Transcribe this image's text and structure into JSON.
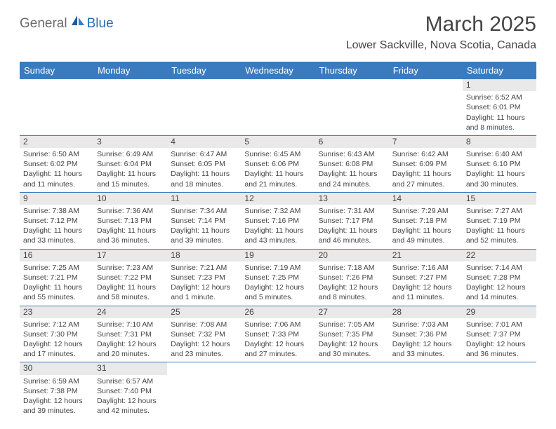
{
  "brand": {
    "part1": "General",
    "part2": "Blue"
  },
  "title": "March 2025",
  "location": "Lower Sackville, Nova Scotia, Canada",
  "colors": {
    "header_bg": "#3a7bbf",
    "header_text": "#ffffff",
    "daynum_bg": "#e9e9e9",
    "text": "#444444",
    "brand_gray": "#6b6b6b",
    "brand_blue": "#2a6db0"
  },
  "weekdays": [
    "Sunday",
    "Monday",
    "Tuesday",
    "Wednesday",
    "Thursday",
    "Friday",
    "Saturday"
  ],
  "weeks": [
    [
      null,
      null,
      null,
      null,
      null,
      null,
      {
        "n": "1",
        "sr": "6:52 AM",
        "ss": "6:01 PM",
        "dl": "11 hours and 8 minutes."
      }
    ],
    [
      {
        "n": "2",
        "sr": "6:50 AM",
        "ss": "6:02 PM",
        "dl": "11 hours and 11 minutes."
      },
      {
        "n": "3",
        "sr": "6:49 AM",
        "ss": "6:04 PM",
        "dl": "11 hours and 15 minutes."
      },
      {
        "n": "4",
        "sr": "6:47 AM",
        "ss": "6:05 PM",
        "dl": "11 hours and 18 minutes."
      },
      {
        "n": "5",
        "sr": "6:45 AM",
        "ss": "6:06 PM",
        "dl": "11 hours and 21 minutes."
      },
      {
        "n": "6",
        "sr": "6:43 AM",
        "ss": "6:08 PM",
        "dl": "11 hours and 24 minutes."
      },
      {
        "n": "7",
        "sr": "6:42 AM",
        "ss": "6:09 PM",
        "dl": "11 hours and 27 minutes."
      },
      {
        "n": "8",
        "sr": "6:40 AM",
        "ss": "6:10 PM",
        "dl": "11 hours and 30 minutes."
      }
    ],
    [
      {
        "n": "9",
        "sr": "7:38 AM",
        "ss": "7:12 PM",
        "dl": "11 hours and 33 minutes."
      },
      {
        "n": "10",
        "sr": "7:36 AM",
        "ss": "7:13 PM",
        "dl": "11 hours and 36 minutes."
      },
      {
        "n": "11",
        "sr": "7:34 AM",
        "ss": "7:14 PM",
        "dl": "11 hours and 39 minutes."
      },
      {
        "n": "12",
        "sr": "7:32 AM",
        "ss": "7:16 PM",
        "dl": "11 hours and 43 minutes."
      },
      {
        "n": "13",
        "sr": "7:31 AM",
        "ss": "7:17 PM",
        "dl": "11 hours and 46 minutes."
      },
      {
        "n": "14",
        "sr": "7:29 AM",
        "ss": "7:18 PM",
        "dl": "11 hours and 49 minutes."
      },
      {
        "n": "15",
        "sr": "7:27 AM",
        "ss": "7:19 PM",
        "dl": "11 hours and 52 minutes."
      }
    ],
    [
      {
        "n": "16",
        "sr": "7:25 AM",
        "ss": "7:21 PM",
        "dl": "11 hours and 55 minutes."
      },
      {
        "n": "17",
        "sr": "7:23 AM",
        "ss": "7:22 PM",
        "dl": "11 hours and 58 minutes."
      },
      {
        "n": "18",
        "sr": "7:21 AM",
        "ss": "7:23 PM",
        "dl": "12 hours and 1 minute."
      },
      {
        "n": "19",
        "sr": "7:19 AM",
        "ss": "7:25 PM",
        "dl": "12 hours and 5 minutes."
      },
      {
        "n": "20",
        "sr": "7:18 AM",
        "ss": "7:26 PM",
        "dl": "12 hours and 8 minutes."
      },
      {
        "n": "21",
        "sr": "7:16 AM",
        "ss": "7:27 PM",
        "dl": "12 hours and 11 minutes."
      },
      {
        "n": "22",
        "sr": "7:14 AM",
        "ss": "7:28 PM",
        "dl": "12 hours and 14 minutes."
      }
    ],
    [
      {
        "n": "23",
        "sr": "7:12 AM",
        "ss": "7:30 PM",
        "dl": "12 hours and 17 minutes."
      },
      {
        "n": "24",
        "sr": "7:10 AM",
        "ss": "7:31 PM",
        "dl": "12 hours and 20 minutes."
      },
      {
        "n": "25",
        "sr": "7:08 AM",
        "ss": "7:32 PM",
        "dl": "12 hours and 23 minutes."
      },
      {
        "n": "26",
        "sr": "7:06 AM",
        "ss": "7:33 PM",
        "dl": "12 hours and 27 minutes."
      },
      {
        "n": "27",
        "sr": "7:05 AM",
        "ss": "7:35 PM",
        "dl": "12 hours and 30 minutes."
      },
      {
        "n": "28",
        "sr": "7:03 AM",
        "ss": "7:36 PM",
        "dl": "12 hours and 33 minutes."
      },
      {
        "n": "29",
        "sr": "7:01 AM",
        "ss": "7:37 PM",
        "dl": "12 hours and 36 minutes."
      }
    ],
    [
      {
        "n": "30",
        "sr": "6:59 AM",
        "ss": "7:38 PM",
        "dl": "12 hours and 39 minutes."
      },
      {
        "n": "31",
        "sr": "6:57 AM",
        "ss": "7:40 PM",
        "dl": "12 hours and 42 minutes."
      },
      null,
      null,
      null,
      null,
      null
    ]
  ],
  "labels": {
    "sunrise": "Sunrise:",
    "sunset": "Sunset:",
    "daylight": "Daylight:"
  }
}
